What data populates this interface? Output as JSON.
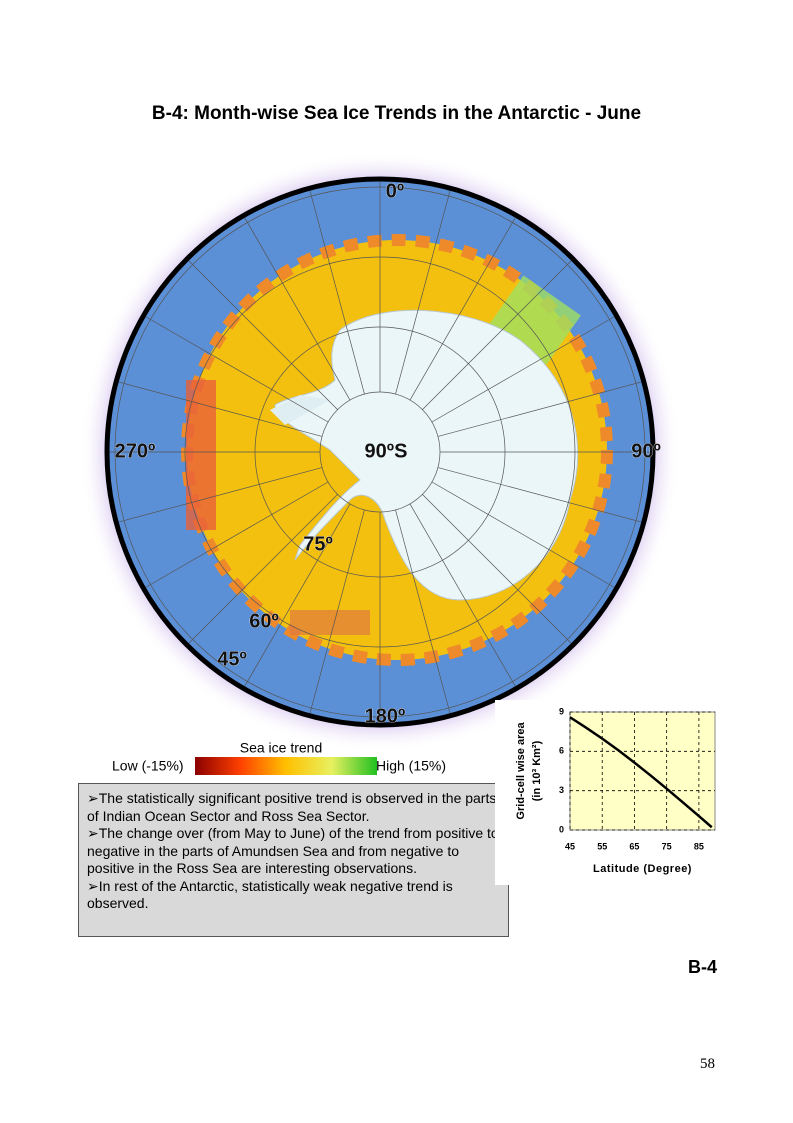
{
  "header": {
    "title": "B-4: Month-wise Sea Ice Trends in the Antarctic - June"
  },
  "map": {
    "labels": [
      "0º",
      "90º",
      "180º",
      "270º",
      "90ºS",
      "75º",
      "60º",
      "45º"
    ]
  },
  "legend": {
    "title": "Sea ice trend",
    "low": "Low (-15%)",
    "high": "High (15%)"
  },
  "notes": [
    "➢The statistically significant positive trend is observed in the parts of Indian Ocean Sector and Ross Sea Sector.",
    "➢The change over (from May to June) of the trend from positive to negative in the parts of Amundsen Sea and from negative to positive in the Ross Sea are interesting observations.",
    "➢In rest of the Antarctic, statistically weak negative trend is observed."
  ],
  "chart_data": {
    "type": "line",
    "x_label": "Latitude (Degree)",
    "y_label": [
      "Grid-cell wise area",
      "(in 10³ Km²)"
    ],
    "x": [
      45,
      50,
      55,
      60,
      65,
      70,
      75,
      80,
      85,
      89
    ],
    "series": [
      {
        "color": "#000000",
        "values": [
          8.6,
          7.8,
          6.97,
          6.08,
          5.14,
          4.16,
          3.15,
          2.11,
          1.06,
          0.21
        ]
      }
    ],
    "xlim": [
      45,
      90
    ],
    "xticks": [
      45,
      55,
      65,
      75,
      85
    ],
    "ylim": [
      0,
      9
    ],
    "yticks": [
      0,
      3,
      6,
      9
    ],
    "grid": true
  },
  "footer": {
    "code": "B-4",
    "page": "58"
  }
}
